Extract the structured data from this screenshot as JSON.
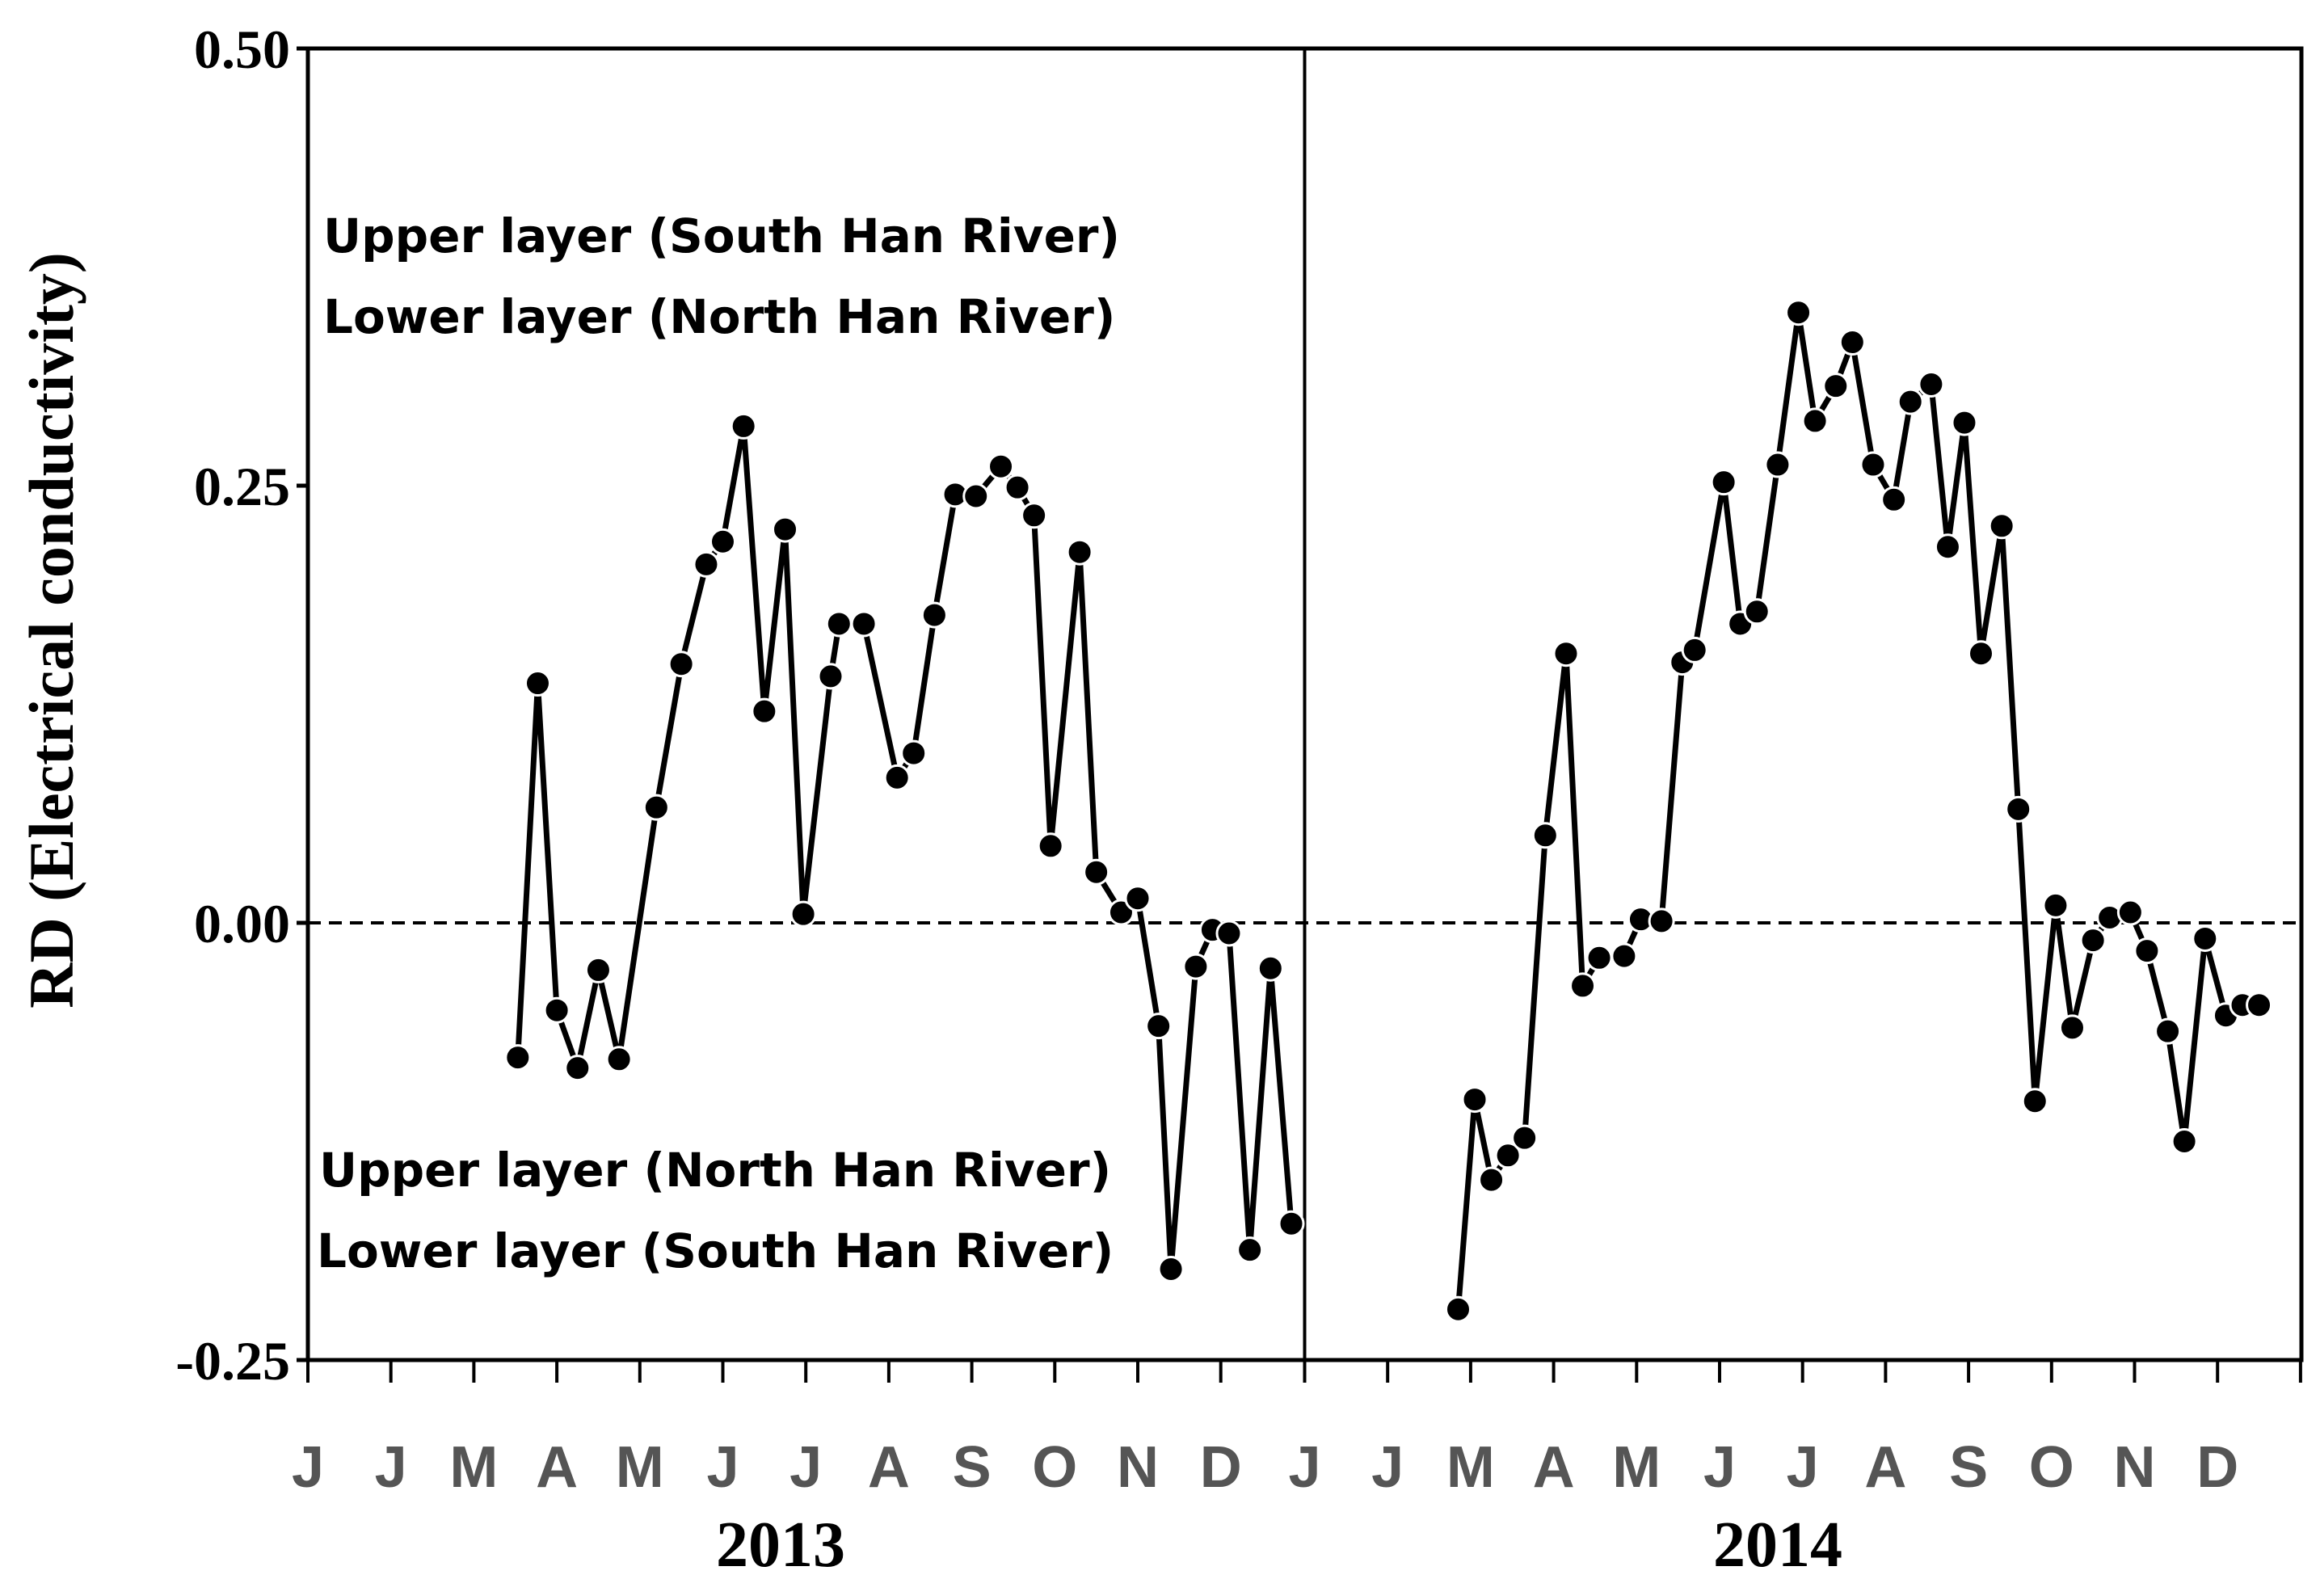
{
  "chart_data": {
    "type": "line",
    "ylabel": "RD (Electrical conductivity)",
    "ylim": [
      -0.25,
      0.5
    ],
    "yticks": [
      "0.50",
      "0.25",
      "0.00",
      "-0.25"
    ],
    "reference_line": 0,
    "months": [
      "J",
      "J",
      "M",
      "A",
      "M",
      "J",
      "J",
      "A",
      "S",
      "O",
      "N",
      "D"
    ],
    "years": [
      "2013",
      "2014"
    ],
    "annotations": {
      "upper": [
        "Upper layer (South Han River)",
        "Lower layer (North Han River)"
      ],
      "lower": [
        "Upper layer (North Han River)",
        "Lower layer (South Han River)"
      ]
    },
    "series": [
      {
        "year": "2013",
        "x_month": [
          2.53,
          2.77,
          3.0,
          3.25,
          3.5,
          3.75,
          4.2,
          4.5,
          4.8,
          5.0,
          5.25,
          5.5,
          5.75,
          5.97,
          6.3,
          6.4,
          6.7,
          7.1,
          7.3,
          7.55,
          7.8,
          8.05,
          8.35,
          8.55,
          8.75,
          8.95,
          9.3,
          9.5,
          9.8,
          10.0,
          10.25,
          10.4,
          10.7,
          10.9,
          11.1,
          11.35,
          11.6,
          11.85
        ],
        "values": [
          -0.077,
          0.137,
          -0.05,
          -0.083,
          -0.027,
          -0.078,
          0.066,
          0.148,
          0.205,
          0.218,
          0.284,
          0.121,
          0.225,
          0.005,
          0.141,
          0.171,
          0.171,
          0.083,
          0.097,
          0.176,
          0.245,
          0.244,
          0.261,
          0.249,
          0.233,
          0.044,
          0.212,
          0.029,
          0.006,
          0.014,
          -0.059,
          -0.198,
          -0.025,
          -0.004,
          -0.006,
          -0.187,
          -0.026,
          -0.172
        ]
      },
      {
        "year": "2014",
        "x_month": [
          1.85,
          2.05,
          2.25,
          2.45,
          2.65,
          2.9,
          3.15,
          3.35,
          3.55,
          3.85,
          4.05,
          4.3,
          4.55,
          4.7,
          5.05,
          5.25,
          5.45,
          5.7,
          5.95,
          6.15,
          6.4,
          6.6,
          6.85,
          7.1,
          7.3,
          7.55,
          7.75,
          7.95,
          8.15,
          8.4,
          8.6,
          8.8,
          9.05,
          9.25,
          9.5,
          9.7,
          9.95,
          10.15,
          10.4,
          10.6,
          10.85,
          11.1,
          11.3,
          11.5
        ],
        "values": [
          -0.221,
          -0.101,
          -0.147,
          -0.133,
          -0.123,
          0.05,
          0.154,
          -0.036,
          -0.02,
          -0.019,
          0.002,
          0.001,
          0.149,
          0.156,
          0.252,
          0.171,
          0.178,
          0.262,
          0.349,
          0.287,
          0.307,
          0.332,
          0.262,
          0.242,
          0.298,
          0.308,
          0.215,
          0.286,
          0.154,
          0.227,
          0.065,
          -0.102,
          0.01,
          -0.06,
          -0.01,
          0.003,
          0.006,
          -0.016,
          -0.062,
          -0.125,
          -0.009,
          -0.053,
          -0.047,
          -0.047
        ]
      }
    ]
  }
}
